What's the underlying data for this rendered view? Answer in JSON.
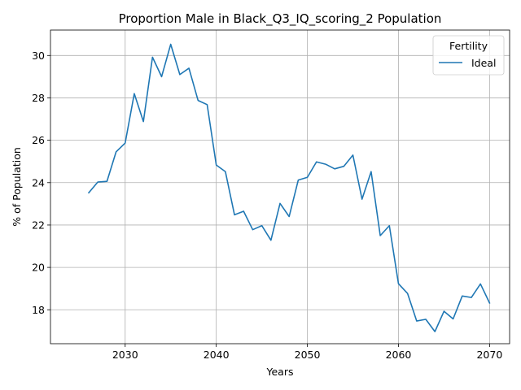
{
  "chart_data": {
    "type": "line",
    "title": "Proportion Male in Black_Q3_IQ_scoring_2 Population",
    "xlabel": "Years",
    "ylabel": "% of Population",
    "xlim": [
      2021.8,
      2072.2
    ],
    "ylim": [
      16.4,
      31.2
    ],
    "xticks": [
      2030,
      2040,
      2050,
      2060,
      2070
    ],
    "yticks": [
      18,
      20,
      22,
      24,
      26,
      28,
      30
    ],
    "grid": true,
    "legend": {
      "title": "Fertility",
      "placement": "top-right",
      "entries": [
        "Ideal"
      ]
    },
    "series": [
      {
        "name": "Ideal",
        "color": "#1f77b4",
        "x": [
          2026,
          2027,
          2028,
          2029,
          2030,
          2031,
          2032,
          2033,
          2034,
          2035,
          2036,
          2037,
          2038,
          2039,
          2040,
          2041,
          2042,
          2043,
          2044,
          2045,
          2046,
          2047,
          2048,
          2049,
          2050,
          2051,
          2052,
          2053,
          2054,
          2055,
          2056,
          2057,
          2058,
          2059,
          2060,
          2061,
          2062,
          2063,
          2064,
          2065,
          2066,
          2067,
          2068,
          2069,
          2070
        ],
        "y": [
          23.52,
          24.03,
          24.06,
          25.45,
          25.87,
          28.2,
          26.88,
          29.92,
          29.0,
          30.53,
          29.1,
          29.4,
          27.88,
          27.68,
          24.83,
          24.52,
          22.48,
          22.65,
          21.78,
          21.97,
          21.28,
          23.02,
          22.4,
          24.12,
          24.25,
          24.98,
          24.87,
          24.65,
          24.77,
          25.3,
          23.22,
          24.52,
          21.5,
          21.97,
          19.23,
          18.77,
          17.47,
          17.55,
          16.97,
          17.93,
          17.57,
          18.65,
          18.58,
          19.22,
          18.32
        ]
      }
    ]
  }
}
